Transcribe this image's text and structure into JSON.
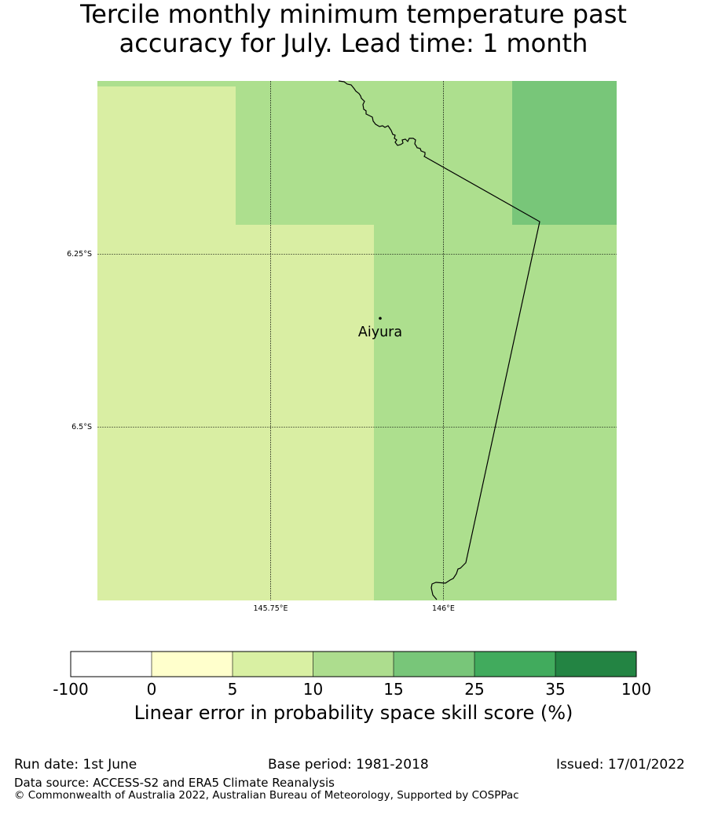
{
  "title": {
    "line1": "Tercile monthly minimum temperature past",
    "line2": "accuracy for July. Lead time: 1 month"
  },
  "map": {
    "lat_labels": [
      "6.25°S",
      "6.5°S"
    ],
    "lon_labels": [
      "145.75°E",
      "146°E"
    ],
    "place": {
      "name": "Aiyura"
    },
    "colors": {
      "c_5_10": "#d9eea3",
      "c_10_15": "#addf8e",
      "c_15_25": "#78c679"
    }
  },
  "colorbar": {
    "ticks": [
      "-100",
      "0",
      "5",
      "10",
      "15",
      "25",
      "35",
      "100"
    ],
    "colors": [
      "#ffffff",
      "#ffffcc",
      "#d9f0a3",
      "#addd8e",
      "#78c679",
      "#41ab5d",
      "#238443"
    ],
    "label": "Linear error in probability space skill score (%)"
  },
  "footer": {
    "run_date": "Run date: 1st June",
    "base_period": "Base period: 1981-2018",
    "issued": "Issued: 17/01/2022",
    "data_source": "Data source: ACCESS-S2 and ERA5 Climate Reanalysis",
    "copyright": "© Commonwealth of Australia 2022, Australian Bureau of Meteorology, Supported by COSPPac"
  }
}
